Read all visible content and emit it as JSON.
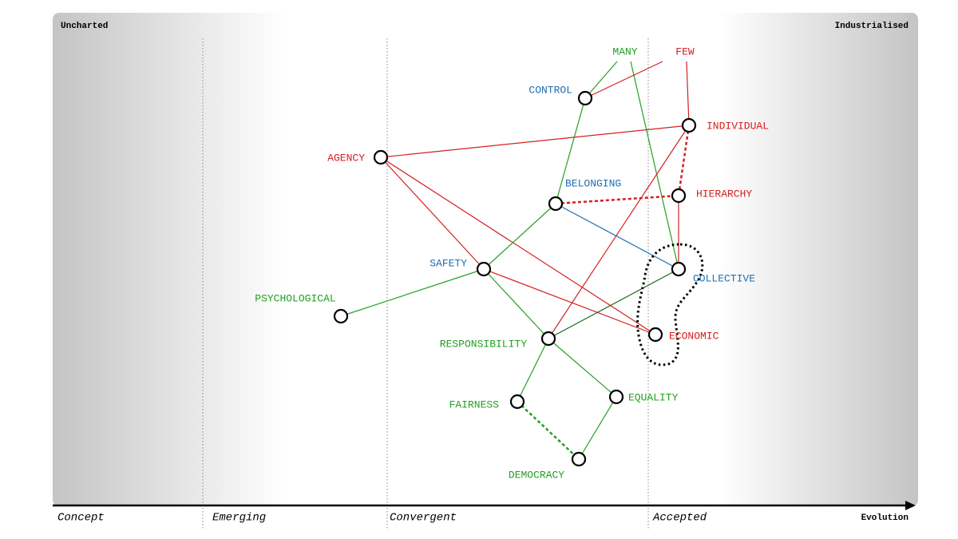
{
  "corners": {
    "left": "Uncharted",
    "right": "Industrialised"
  },
  "stages": [
    "Concept",
    "Emerging",
    "Convergent",
    "Accepted"
  ],
  "axis_label": "Evolution",
  "nodes": [
    {
      "label": "MANY"
    },
    {
      "label": "FEW"
    },
    {
      "label": "CONTROL"
    },
    {
      "label": "INDIVIDUAL"
    },
    {
      "label": "AGENCY"
    },
    {
      "label": "BELONGING"
    },
    {
      "label": "HIERARCHY"
    },
    {
      "label": "SAFETY"
    },
    {
      "label": "COLLECTIVE"
    },
    {
      "label": "PSYCHOLOGICAL"
    },
    {
      "label": "ECONOMIC"
    },
    {
      "label": "RESPONSIBILITY"
    },
    {
      "label": "FAIRNESS"
    },
    {
      "label": "EQUALITY"
    },
    {
      "label": "DEMOCRACY"
    }
  ]
}
